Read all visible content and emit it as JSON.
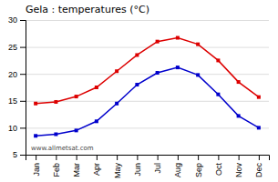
{
  "chart_data": {
    "type": "line",
    "title": "Gela : temperatures (°C)",
    "categories": [
      "Jan",
      "Feb",
      "Mar",
      "Apr",
      "May",
      "Jun",
      "Jul",
      "Aug",
      "Sep",
      "Oct",
      "Nov",
      "Dec"
    ],
    "series": [
      {
        "color": "#dd0000",
        "marker": "square",
        "line_style": "solid",
        "values": [
          14.5,
          14.8,
          15.8,
          17.5,
          20.5,
          23.5,
          26.0,
          26.7,
          25.5,
          22.5,
          18.5,
          15.7
        ]
      },
      {
        "color": "#0000cc",
        "marker": "square",
        "line_style": "solid",
        "values": [
          8.5,
          8.8,
          9.5,
          11.2,
          14.5,
          18.0,
          20.2,
          21.2,
          19.8,
          16.2,
          12.2,
          10.0
        ]
      }
    ],
    "ylim": [
      5,
      30
    ],
    "yticks": [
      5,
      10,
      15,
      20,
      25,
      30
    ],
    "grid": true,
    "annotations": [
      "www.allmetsat.com"
    ]
  }
}
